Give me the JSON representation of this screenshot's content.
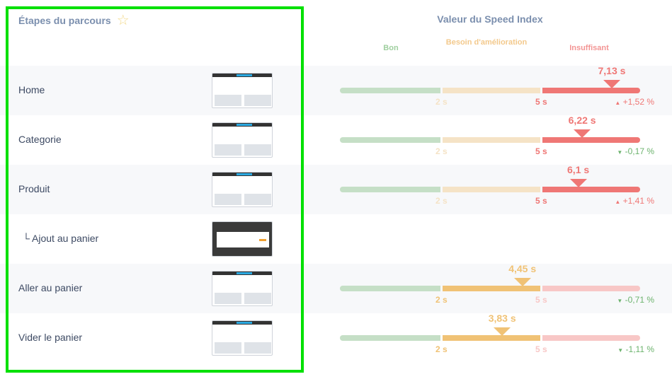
{
  "header": {
    "steps_title": "Étapes du parcours",
    "speed_title": "Valeur du Speed Index"
  },
  "levels": {
    "good": "Bon",
    "needs": "Besoin d'amélioration",
    "poor": "Insuffisant"
  },
  "thresholds": {
    "low": "2 s",
    "high": "5 s"
  },
  "scale": {
    "min": 0,
    "low": 2,
    "high": 5,
    "max": 8
  },
  "colors": {
    "good": "#c5dfc6",
    "needs": "#f0c275",
    "needs_light": "#f5e3c6",
    "poor": "#ef7775",
    "poor_light": "#f8c7c6",
    "title": "#7b8fae",
    "delta_up": "#ef7775",
    "delta_down": "#6cb36d"
  },
  "rows": [
    {
      "name": "Home",
      "value": "7,13 s",
      "seconds": 7.13,
      "delta": "+1,52 %",
      "trend": "up",
      "thumb": "light"
    },
    {
      "name": "Categorie",
      "value": "6,22 s",
      "seconds": 6.22,
      "delta": "-0,17 %",
      "trend": "down",
      "thumb": "light"
    },
    {
      "name": "Produit",
      "value": "6,1 s",
      "seconds": 6.1,
      "delta": "+1,41 %",
      "trend": "up",
      "thumb": "light"
    },
    {
      "name": "└ Ajout au panier",
      "sub": true,
      "thumb": "dark"
    },
    {
      "name": "Aller au panier",
      "value": "4,45 s",
      "seconds": 4.45,
      "delta": "-0,71 %",
      "trend": "down",
      "thumb": "light"
    },
    {
      "name": "Vider le panier",
      "value": "3,83 s",
      "seconds": 3.83,
      "delta": "-1,11 %",
      "trend": "down",
      "thumb": "light"
    }
  ]
}
